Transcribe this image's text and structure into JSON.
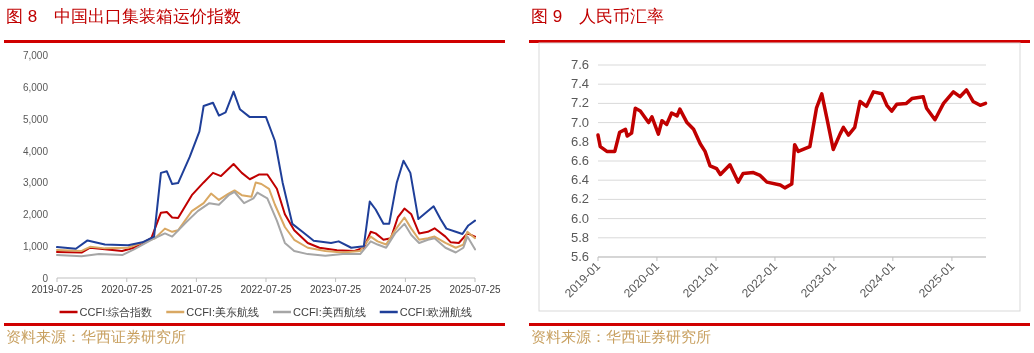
{
  "chart_data": [
    {
      "type": "line",
      "title": "图 8　中国出口集装箱运价指数",
      "annotations": [
        "资料来源：华西证券研究所"
      ],
      "legend": "bottom",
      "xlim": [
        "2019-07-25",
        "2025-07-25"
      ],
      "xticks": [
        "2019-07-25",
        "2020-07-25",
        "2021-07-25",
        "2022-07-25",
        "2023-07-25",
        "2024-07-25",
        "2025-07-25"
      ],
      "ylim": [
        0,
        7000
      ],
      "yticks": [
        0,
        {
          "value": 1000,
          "label": "1,000"
        },
        {
          "value": 2000,
          "label": "2,000"
        },
        {
          "value": 3000,
          "label": "3,000"
        },
        {
          "value": 4000,
          "label": "4,000"
        },
        {
          "value": 5000,
          "label": "5,000"
        },
        {
          "value": 6000,
          "label": "6,000"
        },
        {
          "value": 7000,
          "label": "7,000"
        }
      ],
      "series": [
        {
          "name": "CCFI:综合指数",
          "color": "#c00000",
          "x": [
            "2019-07-25",
            "2019-12-01",
            "2020-01-15",
            "2020-04-01",
            "2020-06-30",
            "2020-09-01",
            "2020-12-01",
            "2021-01-20",
            "2021-02-20",
            "2021-03-20",
            "2021-04-20",
            "2021-07-01",
            "2021-09-01",
            "2021-10-20",
            "2021-12-01",
            "2022-02-05",
            "2022-03-20",
            "2022-05-01",
            "2022-06-20",
            "2022-08-01",
            "2022-09-20",
            "2022-11-01",
            "2022-12-20",
            "2023-03-01",
            "2023-05-01",
            "2023-08-01",
            "2023-11-01",
            "2023-12-20",
            "2024-01-25",
            "2024-02-20",
            "2024-04-01",
            "2024-05-10",
            "2024-06-15",
            "2024-07-20",
            "2024-08-25",
            "2024-10-05",
            "2024-11-20",
            "2024-12-25",
            "2025-02-20",
            "2025-03-20",
            "2025-05-01",
            "2025-06-15",
            "2025-07-25"
          ],
          "values": [
            820,
            800,
            950,
            900,
            850,
            950,
            1250,
            2050,
            2070,
            1900,
            1880,
            2600,
            3000,
            3300,
            3200,
            3580,
            3300,
            3100,
            3250,
            3250,
            2800,
            2000,
            1500,
            1100,
            950,
            870,
            850,
            950,
            1450,
            1400,
            1200,
            1250,
            1900,
            2180,
            2000,
            1400,
            1450,
            1560,
            1300,
            1120,
            1100,
            1400,
            1300
          ]
        },
        {
          "name": "CCFI:美东航线",
          "color": "#d9a863",
          "x": [
            "2019-07-25",
            "2019-12-01",
            "2020-01-15",
            "2020-04-01",
            "2020-08-01",
            "2020-11-01",
            "2020-12-20",
            "2021-02-10",
            "2021-03-20",
            "2021-04-20",
            "2021-07-01",
            "2021-09-01",
            "2021-10-10",
            "2021-11-20",
            "2022-01-10",
            "2022-02-10",
            "2022-03-20",
            "2022-05-10",
            "2022-06-01",
            "2022-07-01",
            "2022-08-10",
            "2022-09-10",
            "2022-11-01",
            "2022-12-20",
            "2023-03-01",
            "2023-06-01",
            "2023-09-01",
            "2023-12-01",
            "2024-01-25",
            "2024-03-01",
            "2024-04-15",
            "2024-06-01",
            "2024-07-20",
            "2024-08-25",
            "2024-10-05",
            "2024-11-20",
            "2024-12-25",
            "2025-02-20",
            "2025-04-15",
            "2025-05-25",
            "2025-06-15",
            "2025-07-25"
          ],
          "values": [
            880,
            850,
            980,
            930,
            950,
            1150,
            1250,
            1550,
            1450,
            1500,
            2100,
            2350,
            2650,
            2450,
            2650,
            2750,
            2600,
            2550,
            3000,
            2950,
            2800,
            2300,
            1600,
            1200,
            950,
            850,
            800,
            850,
            1300,
            1150,
            1050,
            1500,
            1900,
            1550,
            1200,
            1250,
            1300,
            1100,
            950,
            1050,
            1450,
            1250
          ]
        },
        {
          "name": "CCFI:美西航线",
          "color": "#a6a6a6",
          "x": [
            "2019-07-25",
            "2019-12-01",
            "2020-03-01",
            "2020-07-01",
            "2020-09-01",
            "2020-12-01",
            "2021-02-10",
            "2021-03-20",
            "2021-06-01",
            "2021-08-01",
            "2021-10-01",
            "2021-11-20",
            "2022-01-10",
            "2022-02-10",
            "2022-04-01",
            "2022-05-20",
            "2022-06-10",
            "2022-08-01",
            "2022-09-20",
            "2022-11-01",
            "2022-12-20",
            "2023-03-01",
            "2023-06-01",
            "2023-09-01",
            "2023-12-01",
            "2024-01-25",
            "2024-03-01",
            "2024-04-15",
            "2024-06-01",
            "2024-07-20",
            "2024-08-25",
            "2024-10-05",
            "2024-11-20",
            "2024-12-25",
            "2025-02-20",
            "2025-04-15",
            "2025-05-25",
            "2025-06-15",
            "2025-07-25"
          ],
          "values": [
            720,
            680,
            750,
            720,
            900,
            1200,
            1400,
            1300,
            1750,
            2100,
            2350,
            2300,
            2600,
            2700,
            2350,
            2500,
            2680,
            2500,
            1800,
            1100,
            850,
            750,
            700,
            750,
            750,
            1150,
            1050,
            950,
            1400,
            1700,
            1350,
            1100,
            1200,
            1250,
            950,
            800,
            950,
            1300,
            900
          ]
        },
        {
          "name": "CCFI:欧洲航线",
          "color": "#1f3f99",
          "x": [
            "2019-07-25",
            "2019-11-01",
            "2020-01-01",
            "2020-04-01",
            "2020-08-01",
            "2020-10-15",
            "2020-12-15",
            "2021-01-20",
            "2021-02-20",
            "2021-03-20",
            "2021-04-20",
            "2021-06-20",
            "2021-08-10",
            "2021-09-01",
            "2021-10-20",
            "2021-11-20",
            "2021-12-25",
            "2022-02-05",
            "2022-03-10",
            "2022-05-01",
            "2022-07-25",
            "2022-09-10",
            "2022-10-20",
            "2022-12-10",
            "2023-02-01",
            "2023-04-01",
            "2023-07-01",
            "2023-08-10",
            "2023-10-15",
            "2023-12-20",
            "2024-01-20",
            "2024-02-20",
            "2024-04-01",
            "2024-05-01",
            "2024-06-10",
            "2024-07-15",
            "2024-08-20",
            "2024-10-01",
            "2024-11-20",
            "2024-12-20",
            "2025-01-25",
            "2025-02-25",
            "2025-04-15",
            "2025-05-20",
            "2025-06-20",
            "2025-07-25"
          ],
          "values": [
            970,
            920,
            1180,
            1050,
            1030,
            1120,
            1300,
            3300,
            3350,
            2950,
            2980,
            3800,
            4600,
            5400,
            5500,
            5100,
            5200,
            5850,
            5300,
            5050,
            5050,
            4300,
            3000,
            1700,
            1450,
            1170,
            1100,
            1150,
            950,
            1000,
            2400,
            2150,
            1700,
            1700,
            3000,
            3680,
            3300,
            1850,
            2100,
            2250,
            1850,
            1550,
            1450,
            1380,
            1650,
            1800
          ]
        }
      ]
    },
    {
      "type": "line",
      "title": "图 9　人民币汇率",
      "annotations": [
        "资料来源：华西证券研究所"
      ],
      "grid": "y",
      "xlim": [
        "2019-01-01",
        "2025-07-31"
      ],
      "xticks": [
        "2019-01",
        "2020-01",
        "2021-01",
        "2022-01",
        "2023-01",
        "2024-01",
        "2025-01"
      ],
      "ylim": [
        5.6,
        7.6
      ],
      "yticks": [
        5.6,
        5.8,
        {
          "value": 6,
          "label": "6.0"
        },
        6.2,
        6.4,
        6.6,
        6.8,
        {
          "value": 7,
          "label": "7.0"
        },
        7.2,
        7.4,
        7.6
      ],
      "series": [
        {
          "color": "#c00000",
          "x": [
            "2019-01-01",
            "2019-01-15",
            "2019-02-25",
            "2019-04-15",
            "2019-05-15",
            "2019-06-20",
            "2019-07-01",
            "2019-07-28",
            "2019-08-20",
            "2019-09-20",
            "2019-11-10",
            "2019-12-01",
            "2020-01-10",
            "2020-02-01",
            "2020-03-01",
            "2020-04-01",
            "2020-05-05",
            "2020-05-22",
            "2020-07-05",
            "2020-08-15",
            "2020-09-25",
            "2020-10-25",
            "2020-11-25",
            "2021-01-05",
            "2021-01-28",
            "2021-03-28",
            "2021-05-18",
            "2021-06-18",
            "2021-08-20",
            "2021-10-01",
            "2021-11-12",
            "2022-02-03",
            "2022-03-03",
            "2022-04-15",
            "2022-05-03",
            "2022-05-25",
            "2022-08-05",
            "2022-09-15",
            "2022-10-18",
            "2022-11-18",
            "2022-12-28",
            "2023-02-08",
            "2023-03-01",
            "2023-04-01",
            "2023-05-10",
            "2023-06-12",
            "2023-07-22",
            "2023-09-03",
            "2023-10-25",
            "2023-11-25",
            "2023-12-25",
            "2024-01-25",
            "2024-03-25",
            "2024-04-28",
            "2024-07-07",
            "2024-07-28",
            "2024-09-18",
            "2024-11-10",
            "2025-01-10",
            "2025-02-20",
            "2025-04-01",
            "2025-05-12",
            "2025-06-25",
            "2025-07-28"
          ],
          "values": [
            6.87,
            6.75,
            6.7,
            6.7,
            6.9,
            6.93,
            6.86,
            6.89,
            7.15,
            7.12,
            7.0,
            7.06,
            6.88,
            7.02,
            6.98,
            7.1,
            7.07,
            7.14,
            7.0,
            6.93,
            6.78,
            6.7,
            6.55,
            6.52,
            6.46,
            6.56,
            6.38,
            6.47,
            6.48,
            6.45,
            6.38,
            6.35,
            6.32,
            6.36,
            6.77,
            6.7,
            6.75,
            7.15,
            7.3,
            7.05,
            6.72,
            6.88,
            6.95,
            6.87,
            6.95,
            7.22,
            7.17,
            7.32,
            7.3,
            7.18,
            7.12,
            7.19,
            7.2,
            7.25,
            7.27,
            7.15,
            7.03,
            7.2,
            7.32,
            7.27,
            7.34,
            7.22,
            7.18,
            7.2
          ]
        }
      ]
    }
  ]
}
